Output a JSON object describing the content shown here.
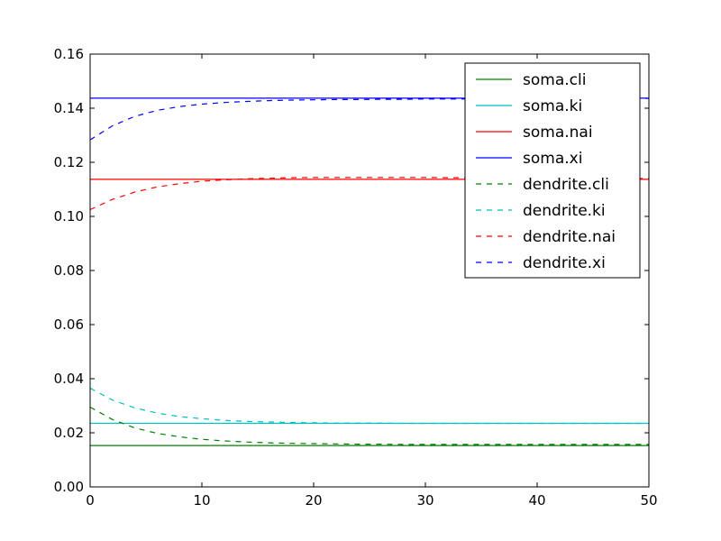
{
  "chart_data": {
    "type": "line",
    "title": "",
    "xlabel": "",
    "ylabel": "",
    "xlim": [
      0,
      50
    ],
    "ylim": [
      0.0,
      0.16
    ],
    "xticks": [
      0,
      10,
      20,
      30,
      40,
      50
    ],
    "xtick_labels": [
      "0",
      "10",
      "20",
      "30",
      "40",
      "50"
    ],
    "yticks": [
      0.0,
      0.02,
      0.04,
      0.06,
      0.08,
      0.1,
      0.12,
      0.14,
      0.16
    ],
    "ytick_labels": [
      "0.00",
      "0.02",
      "0.04",
      "0.06",
      "0.08",
      "0.10",
      "0.12",
      "0.14",
      "0.16"
    ],
    "grid": false,
    "legend_position": "top-right",
    "x": [
      0,
      2,
      4,
      6,
      8,
      10,
      12,
      14,
      16,
      18,
      20,
      22,
      24,
      26,
      28,
      30,
      32,
      34,
      36,
      38,
      40,
      42,
      44,
      46,
      48,
      50
    ],
    "series": [
      {
        "name": "soma.cli",
        "color": "#008000",
        "dash": "solid",
        "values": [
          0.0153,
          0.0153,
          0.0153,
          0.0153,
          0.0153,
          0.0153,
          0.0153,
          0.0153,
          0.0153,
          0.0153,
          0.0153,
          0.0153,
          0.0153,
          0.0153,
          0.0153,
          0.0153,
          0.0153,
          0.0153,
          0.0153,
          0.0153,
          0.0153,
          0.0153,
          0.0153,
          0.0153,
          0.0153,
          0.0153
        ]
      },
      {
        "name": "soma.ki",
        "color": "#00bfbf",
        "dash": "solid",
        "values": [
          0.0235,
          0.0235,
          0.0235,
          0.0235,
          0.0235,
          0.0235,
          0.0235,
          0.0235,
          0.0235,
          0.0235,
          0.0235,
          0.0235,
          0.0235,
          0.0235,
          0.0235,
          0.0235,
          0.0235,
          0.0235,
          0.0235,
          0.0235,
          0.0235,
          0.0235,
          0.0235,
          0.0235,
          0.0235,
          0.0235
        ]
      },
      {
        "name": "soma.nai",
        "color": "#ff0000",
        "dash": "solid",
        "values": [
          0.1137,
          0.1137,
          0.1137,
          0.1137,
          0.1137,
          0.1137,
          0.1137,
          0.1137,
          0.1137,
          0.1137,
          0.1137,
          0.1137,
          0.1137,
          0.1137,
          0.1137,
          0.1137,
          0.1137,
          0.1137,
          0.1137,
          0.1137,
          0.1137,
          0.1137,
          0.1137,
          0.1137,
          0.1137,
          0.1137
        ]
      },
      {
        "name": "soma.xi",
        "color": "#0000ff",
        "dash": "solid",
        "values": [
          0.1437,
          0.1437,
          0.1437,
          0.1437,
          0.1437,
          0.1437,
          0.1437,
          0.1437,
          0.1437,
          0.1437,
          0.1437,
          0.1437,
          0.1437,
          0.1437,
          0.1437,
          0.1437,
          0.1437,
          0.1437,
          0.1437,
          0.1437,
          0.1437,
          0.1437,
          0.1437,
          0.1437,
          0.1437,
          0.1437
        ]
      },
      {
        "name": "dendrite.cli",
        "color": "#008000",
        "dash": "dashed",
        "values": [
          0.0295,
          0.0249,
          0.0218,
          0.0198,
          0.0185,
          0.0176,
          0.017,
          0.0166,
          0.0163,
          0.0161,
          0.016,
          0.0159,
          0.0158,
          0.0158,
          0.0157,
          0.0157,
          0.0157,
          0.0157,
          0.0157,
          0.0157,
          0.0157,
          0.0157,
          0.0157,
          0.0157,
          0.0157,
          0.0157
        ]
      },
      {
        "name": "dendrite.ki",
        "color": "#00bfbf",
        "dash": "dashed",
        "values": [
          0.0365,
          0.0321,
          0.0292,
          0.0273,
          0.026,
          0.0252,
          0.0246,
          0.0242,
          0.024,
          0.0238,
          0.0237,
          0.0236,
          0.0236,
          0.0236,
          0.0235,
          0.0235,
          0.0235,
          0.0235,
          0.0235,
          0.0235,
          0.0235,
          0.0235,
          0.0235,
          0.0235,
          0.0235,
          0.0235
        ]
      },
      {
        "name": "dendrite.nai",
        "color": "#ff0000",
        "dash": "dashed",
        "values": [
          0.1025,
          0.1063,
          0.109,
          0.1109,
          0.1121,
          0.113,
          0.1135,
          0.1139,
          0.1141,
          0.1143,
          0.1144,
          0.1144,
          0.1144,
          0.1144,
          0.1144,
          0.1144,
          0.1143,
          0.1143,
          0.1143,
          0.1142,
          0.1142,
          0.1141,
          0.1141,
          0.1141,
          0.114,
          0.114
        ]
      },
      {
        "name": "dendrite.xi",
        "color": "#0000ff",
        "dash": "dashed",
        "values": [
          0.1283,
          0.1335,
          0.137,
          0.1392,
          0.1406,
          0.1415,
          0.1421,
          0.1425,
          0.1428,
          0.143,
          0.1431,
          0.1432,
          0.1432,
          0.1433,
          0.1433,
          0.1434,
          0.1434,
          0.1434,
          0.1434,
          0.1434,
          0.1435,
          0.1435,
          0.1435,
          0.1435,
          0.1436,
          0.1436
        ]
      }
    ]
  }
}
